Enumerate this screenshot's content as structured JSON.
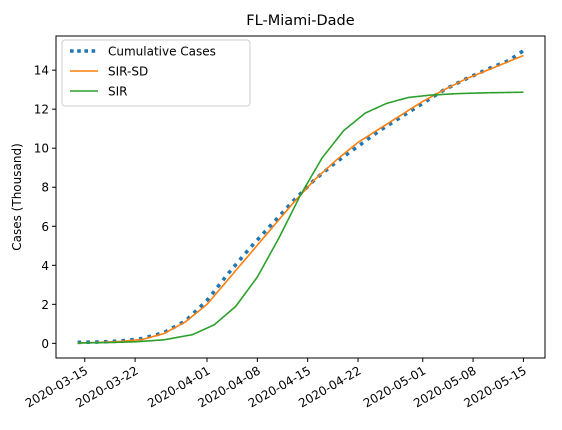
{
  "chart_data": {
    "type": "line",
    "title": "FL-Miami-Dade",
    "xlabel": "",
    "ylabel": "Cases (Thousand)",
    "x_start": "2020-03-14",
    "x_end": "2020-05-15",
    "xlim": [
      "2020-03-11",
      "2020-05-18"
    ],
    "ylim": [
      -0.75,
      15.75
    ],
    "x_ticks": [
      "2020-03-15",
      "2020-03-22",
      "2020-04-01",
      "2020-04-08",
      "2020-04-15",
      "2020-04-22",
      "2020-05-01",
      "2020-05-08",
      "2020-05-15"
    ],
    "y_ticks": [
      0,
      2,
      4,
      6,
      8,
      10,
      12,
      14
    ],
    "grid": false,
    "legend_position": "top-left",
    "series": [
      {
        "name": "Cumulative Cases",
        "style": "dotted",
        "color": "#1f77b4",
        "x": [
          "2020-03-14",
          "2020-03-17",
          "2020-03-20",
          "2020-03-23",
          "2020-03-26",
          "2020-03-29",
          "2020-04-01",
          "2020-04-04",
          "2020-04-07",
          "2020-04-10",
          "2020-04-13",
          "2020-04-16",
          "2020-04-19",
          "2020-04-22",
          "2020-04-25",
          "2020-04-28",
          "2020-05-01",
          "2020-05-04",
          "2020-05-07",
          "2020-05-10",
          "2020-05-13",
          "2020-05-15"
        ],
        "values": [
          0.05,
          0.07,
          0.12,
          0.25,
          0.55,
          1.15,
          2.2,
          3.6,
          4.9,
          6.1,
          7.3,
          8.4,
          9.3,
          10.1,
          10.9,
          11.6,
          12.3,
          13.0,
          13.55,
          14.05,
          14.5,
          15.0
        ]
      },
      {
        "name": "SIR-SD",
        "style": "solid",
        "color": "#ff7f0e",
        "x": [
          "2020-03-14",
          "2020-03-17",
          "2020-03-20",
          "2020-03-23",
          "2020-03-26",
          "2020-03-29",
          "2020-04-01",
          "2020-04-04",
          "2020-04-07",
          "2020-04-10",
          "2020-04-13",
          "2020-04-16",
          "2020-04-19",
          "2020-04-22",
          "2020-04-25",
          "2020-04-28",
          "2020-05-01",
          "2020-05-04",
          "2020-05-07",
          "2020-05-10",
          "2020-05-13",
          "2020-05-15"
        ],
        "values": [
          0.02,
          0.05,
          0.1,
          0.2,
          0.5,
          1.1,
          2.0,
          3.3,
          4.6,
          5.9,
          7.2,
          8.4,
          9.4,
          10.3,
          11.0,
          11.7,
          12.4,
          13.0,
          13.55,
          14.0,
          14.45,
          14.75
        ]
      },
      {
        "name": "SIR",
        "style": "solid",
        "color": "#2ca02c",
        "x": [
          "2020-03-14",
          "2020-03-18",
          "2020-03-22",
          "2020-03-26",
          "2020-03-30",
          "2020-04-02",
          "2020-04-05",
          "2020-04-08",
          "2020-04-11",
          "2020-04-14",
          "2020-04-17",
          "2020-04-20",
          "2020-04-23",
          "2020-04-26",
          "2020-04-29",
          "2020-05-02",
          "2020-05-06",
          "2020-05-10",
          "2020-05-15"
        ],
        "values": [
          0.02,
          0.04,
          0.08,
          0.18,
          0.45,
          0.95,
          1.9,
          3.4,
          5.4,
          7.6,
          9.5,
          10.9,
          11.8,
          12.3,
          12.6,
          12.72,
          12.8,
          12.84,
          12.87
        ]
      }
    ]
  }
}
